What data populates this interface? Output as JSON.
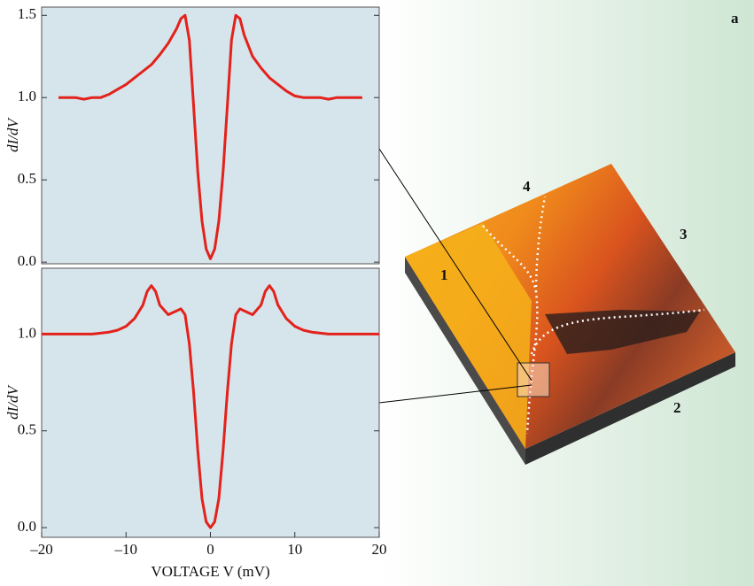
{
  "chart_data": [
    {
      "type": "line",
      "y_label": "dI/dV",
      "color": "#e3221b",
      "xlim": [
        -20,
        20
      ],
      "ylim": [
        -0.01,
        1.55
      ],
      "yticks": [
        {
          "value": 0,
          "label": "0.0"
        },
        {
          "value": 0.5,
          "label": "0.5"
        },
        {
          "value": 1,
          "label": "1.0"
        },
        {
          "value": 1.5,
          "label": "1.5"
        }
      ],
      "x": [
        -18,
        -17,
        -16,
        -15,
        -14,
        -13,
        -12,
        -11,
        -10,
        -9,
        -8,
        -7,
        -6,
        -5,
        -4,
        -3.5,
        -3,
        -2.5,
        -2,
        -1.5,
        -1,
        -0.5,
        0,
        0.5,
        1,
        1.5,
        2,
        2.5,
        3,
        3.5,
        4,
        5,
        6,
        7,
        8,
        9,
        10,
        11,
        12,
        13,
        14,
        15,
        16,
        17,
        18
      ],
      "values": [
        1.0,
        1.0,
        1.0,
        0.99,
        1.0,
        1.0,
        1.02,
        1.05,
        1.08,
        1.12,
        1.16,
        1.2,
        1.26,
        1.33,
        1.42,
        1.48,
        1.5,
        1.35,
        0.95,
        0.55,
        0.25,
        0.08,
        0.02,
        0.08,
        0.25,
        0.55,
        0.95,
        1.35,
        1.5,
        1.48,
        1.38,
        1.25,
        1.18,
        1.12,
        1.08,
        1.04,
        1.01,
        1.0,
        1.0,
        1.0,
        0.99,
        1.0,
        1.0,
        1.0,
        1.0
      ]
    },
    {
      "type": "line",
      "x_label": "VOLTAGE V (mV)",
      "y_label": "dI/dV",
      "color": "#e3221b",
      "xlim": [
        -20,
        20
      ],
      "ylim": [
        -0.05,
        1.34
      ],
      "xticks": [
        {
          "value": -20,
          "label": "–20"
        },
        {
          "value": -10,
          "label": "–10"
        },
        0,
        10,
        20
      ],
      "yticks": [
        {
          "value": 0,
          "label": "0.0"
        },
        {
          "value": 0.5,
          "label": "0.5"
        },
        {
          "value": 1,
          "label": "1.0"
        }
      ],
      "x": [
        -20,
        -18,
        -16,
        -14,
        -12,
        -11,
        -10,
        -9,
        -8,
        -7.5,
        -7,
        -6.5,
        -6,
        -5,
        -4,
        -3.5,
        -3,
        -2.5,
        -2,
        -1.5,
        -1,
        -0.5,
        0,
        0.5,
        1,
        1.5,
        2,
        2.5,
        3,
        3.5,
        4,
        5,
        6,
        6.5,
        7,
        7.5,
        8,
        9,
        10,
        11,
        12,
        14,
        16,
        18,
        20
      ],
      "values": [
        1.0,
        1.0,
        1.0,
        1.0,
        1.01,
        1.02,
        1.04,
        1.08,
        1.15,
        1.22,
        1.25,
        1.22,
        1.15,
        1.1,
        1.12,
        1.13,
        1.1,
        0.95,
        0.7,
        0.4,
        0.15,
        0.03,
        0.0,
        0.03,
        0.15,
        0.4,
        0.7,
        0.95,
        1.1,
        1.13,
        1.12,
        1.1,
        1.15,
        1.22,
        1.25,
        1.22,
        1.15,
        1.08,
        1.04,
        1.02,
        1.01,
        1.0,
        1.0,
        1.0,
        1.0
      ]
    }
  ],
  "figure": {
    "panel_label": "a",
    "region_labels": [
      "1",
      "2",
      "3",
      "4"
    ]
  }
}
